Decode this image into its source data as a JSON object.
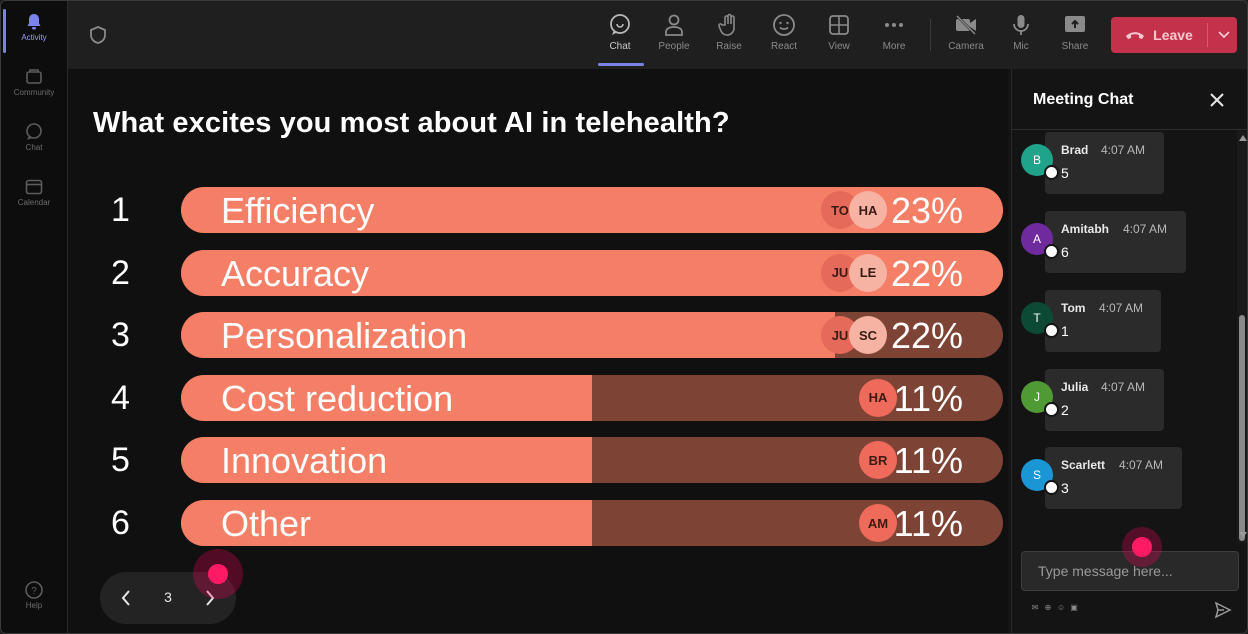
{
  "rail": {
    "items": [
      {
        "label": "Activity",
        "icon": "bell-icon",
        "active": true
      },
      {
        "label": "Community",
        "icon": "community-icon",
        "active": false
      },
      {
        "label": "Chat",
        "icon": "chat-icon",
        "active": false
      },
      {
        "label": "Calendar",
        "icon": "calendar-icon",
        "active": false
      }
    ],
    "help": {
      "label": "Help",
      "icon": "help-icon"
    }
  },
  "toolbar": {
    "items": [
      {
        "label": "Chat",
        "icon": "chat-icon",
        "active": true
      },
      {
        "label": "People",
        "icon": "people-icon",
        "active": false
      },
      {
        "label": "Raise",
        "icon": "raise-hand-icon",
        "active": false
      },
      {
        "label": "React",
        "icon": "react-icon",
        "active": false
      },
      {
        "label": "View",
        "icon": "view-icon",
        "active": false
      },
      {
        "label": "More",
        "icon": "more-icon",
        "active": false
      },
      {
        "label": "Camera",
        "icon": "camera-off-icon",
        "active": false
      },
      {
        "label": "Mic",
        "icon": "mic-icon",
        "active": false
      },
      {
        "label": "Share",
        "icon": "share-icon",
        "active": false
      }
    ],
    "leave_label": "Leave",
    "leave_color": "#c4314b"
  },
  "poll": {
    "question": "What excites you most about AI in telehealth?",
    "fill_color": "#f47f66",
    "track_color": "#7d4334",
    "options": [
      {
        "num": "1",
        "label": "Efficiency",
        "percent_label": "23%",
        "fill": 1.0,
        "avatars": [
          "TO",
          "HA"
        ]
      },
      {
        "num": "2",
        "label": "Accuracy",
        "percent_label": "22%",
        "fill": 1.0,
        "avatars": [
          "JU",
          "LE"
        ]
      },
      {
        "num": "3",
        "label": "Personalization",
        "percent_label": "22%",
        "fill": 0.796,
        "avatars": [
          "JU",
          "SC"
        ]
      },
      {
        "num": "4",
        "label": "Cost reduction",
        "percent_label": "11%",
        "fill": 0.5,
        "avatars": [
          "HA"
        ]
      },
      {
        "num": "5",
        "label": "Innovation",
        "percent_label": "11%",
        "fill": 0.5,
        "avatars": [
          "BR"
        ]
      },
      {
        "num": "6",
        "label": "Other",
        "percent_label": "11%",
        "fill": 0.5,
        "avatars": [
          "AM"
        ]
      }
    ],
    "pager": {
      "page": "3"
    }
  },
  "chat": {
    "title": "Meeting Chat",
    "messages": [
      {
        "initial": "B",
        "name": "Brad",
        "time": "4:07 AM",
        "text": "5",
        "avatar_color": "#1fa38a"
      },
      {
        "initial": "A",
        "name": "Amitabh",
        "time": "4:07 AM",
        "text": "6",
        "avatar_color": "#6f2b9e"
      },
      {
        "initial": "T",
        "name": "Tom",
        "time": "4:07 AM",
        "text": "1",
        "avatar_color": "#0d4a36"
      },
      {
        "initial": "J",
        "name": "Julia",
        "time": "4:07 AM",
        "text": "2",
        "avatar_color": "#4f9a35"
      },
      {
        "initial": "S",
        "name": "Scarlett",
        "time": "4:07 AM",
        "text": "3",
        "avatar_color": "#1a96d4"
      }
    ],
    "input_placeholder": "Type message here..."
  }
}
